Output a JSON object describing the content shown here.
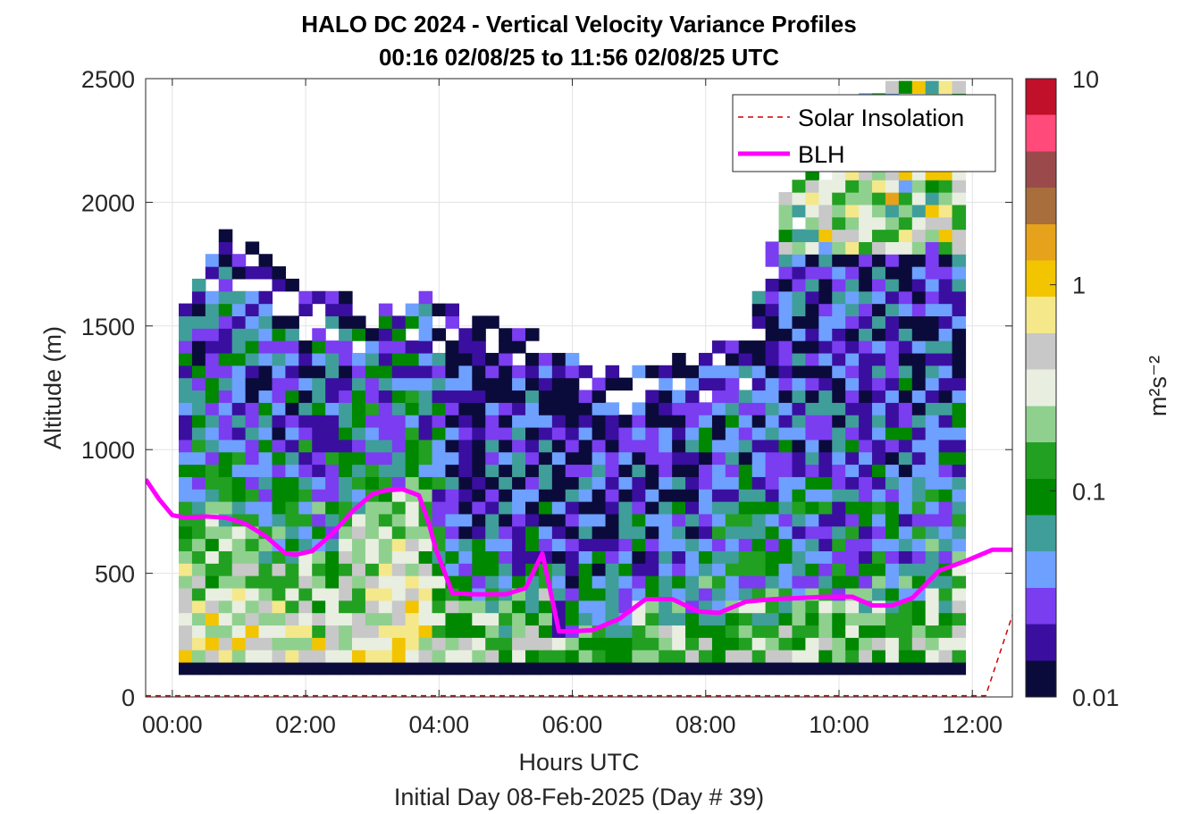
{
  "chart_data": {
    "type": "heatmap",
    "title": "HALO DC 2024 - Vertical Velocity Variance Profiles",
    "subtitle": "00:16 02/08/25 to 11:56 02/08/25  UTC",
    "xlabel": "Hours UTC",
    "xlabel2": "Initial Day 08-Feb-2025 (Day # 39)",
    "ylabel": "Altitude (m)",
    "xlim_hours": [
      -0.4,
      12.6
    ],
    "ylim": [
      0,
      2500
    ],
    "x_ticks": [
      {
        "hours": 0,
        "label": "00:00"
      },
      {
        "hours": 2,
        "label": "02:00"
      },
      {
        "hours": 4,
        "label": "04:00"
      },
      {
        "hours": 6,
        "label": "06:00"
      },
      {
        "hours": 8,
        "label": "08:00"
      },
      {
        "hours": 10,
        "label": "10:00"
      },
      {
        "hours": 12,
        "label": "12:00"
      }
    ],
    "y_ticks": [
      {
        "value": 0,
        "label": "0"
      },
      {
        "value": 500,
        "label": "500"
      },
      {
        "value": 1000,
        "label": "1000"
      },
      {
        "value": 1500,
        "label": "1500"
      },
      {
        "value": 2000,
        "label": "2000"
      },
      {
        "value": 2500,
        "label": "2500"
      }
    ],
    "grid": true,
    "colorbar": {
      "label": "m²s⁻²",
      "scale": "log",
      "range": [
        0.01,
        10
      ],
      "ticks": [
        {
          "value": 0.01,
          "label": "0.01"
        },
        {
          "value": 0.1,
          "label": "0.1"
        },
        {
          "value": 1,
          "label": "1"
        },
        {
          "value": 10,
          "label": "10"
        }
      ],
      "colors": [
        "#0b0b3b",
        "#3a0fa0",
        "#7a3df0",
        "#6ea0ff",
        "#3f9e9a",
        "#008800",
        "#22a022",
        "#8fd08f",
        "#e8efe0",
        "#c8c8c8",
        "#f5e88a",
        "#f2c500",
        "#e6a21a",
        "#a86e3c",
        "#9a4a4a",
        "#ff4a7a",
        "#c0102a"
      ]
    },
    "legend": {
      "position": "top-right",
      "entries": [
        {
          "label": "Solar Insolation",
          "color": "#cc0000",
          "style": "dashed"
        },
        {
          "label": "BLH",
          "color": "#ff00ff",
          "style": "solid"
        }
      ]
    },
    "series": [
      {
        "name": "BLH",
        "color": "#ff00ff",
        "x_hours": [
          -0.4,
          -0.2,
          0.0,
          0.2,
          0.5,
          0.8,
          1.1,
          1.4,
          1.7,
          1.85,
          2.1,
          2.4,
          2.7,
          3.0,
          3.2,
          3.45,
          3.6,
          3.7,
          3.85,
          3.95,
          4.2,
          4.5,
          5.0,
          5.3,
          5.55,
          5.8,
          6.0,
          6.3,
          6.7,
          7.1,
          7.5,
          7.9,
          8.2,
          8.6,
          9.0,
          9.4,
          9.8,
          10.2,
          10.5,
          10.8,
          11.1,
          11.5,
          11.9,
          12.3,
          12.6
        ],
        "values": [
          880,
          800,
          735,
          725,
          730,
          725,
          700,
          650,
          580,
          575,
          590,
          660,
          750,
          820,
          835,
          840,
          825,
          815,
          700,
          600,
          420,
          415,
          415,
          440,
          580,
          265,
          265,
          270,
          315,
          395,
          395,
          345,
          340,
          385,
          395,
          400,
          405,
          405,
          370,
          370,
          400,
          510,
          550,
          595,
          595
        ]
      },
      {
        "name": "Solar Insolation",
        "color": "#cc0000",
        "x_hours": [
          -0.4,
          12.2,
          12.6
        ],
        "values": [
          5,
          5,
          330
        ]
      }
    ],
    "heatmap": {
      "value_unit": "m2s-2",
      "rows_altitude_order": "ascending from 115 m in 50 m steps",
      "column_hour_spacing": 0.2,
      "column_count": 59,
      "profiles": [
        {
          "t_hours": 0.2,
          "top_m": 1650
        },
        {
          "t_hours": 0.8,
          "top_m": 1870
        },
        {
          "t_hours": 1.4,
          "top_m": 1800
        },
        {
          "t_hours": 2.0,
          "top_m": 1650
        },
        {
          "t_hours": 2.6,
          "top_m": 1620
        },
        {
          "t_hours": 3.2,
          "top_m": 1580
        },
        {
          "t_hours": 3.8,
          "top_m": 1620
        },
        {
          "t_hours": 4.4,
          "top_m": 1560
        },
        {
          "t_hours": 5.0,
          "top_m": 1500
        },
        {
          "t_hours": 5.6,
          "top_m": 1450
        },
        {
          "t_hours": 6.2,
          "top_m": 1350
        },
        {
          "t_hours": 6.8,
          "top_m": 1320
        },
        {
          "t_hours": 7.4,
          "top_m": 1350
        },
        {
          "t_hours": 8.0,
          "top_m": 1400
        },
        {
          "t_hours": 8.6,
          "top_m": 1450
        },
        {
          "t_hours": 9.2,
          "top_m": 2050
        },
        {
          "t_hours": 9.8,
          "top_m": 2150
        },
        {
          "t_hours": 10.4,
          "top_m": 2450
        },
        {
          "t_hours": 11.0,
          "top_m": 2500
        },
        {
          "t_hours": 11.6,
          "top_m": 2500
        }
      ],
      "lowest_row": {
        "altitude_m": 115,
        "value": 0.01
      }
    }
  }
}
